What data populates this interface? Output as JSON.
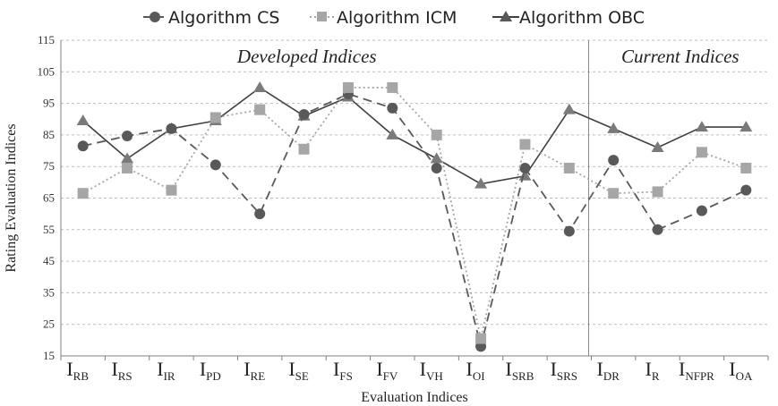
{
  "chart_data": {
    "type": "line",
    "title": "",
    "xlabel": "Evaluation Indices",
    "ylabel": "Rating Evaluation Indices",
    "ylim": [
      15,
      115
    ],
    "yticks": [
      "15",
      "25",
      "35",
      "45",
      "55",
      "65",
      "75",
      "85",
      "95",
      "105",
      "115"
    ],
    "grid": "horizontal dashed",
    "legend_position": "top",
    "categories": [
      {
        "main": "I",
        "sub": "RB"
      },
      {
        "main": "I",
        "sub": "RS"
      },
      {
        "main": "I",
        "sub": "IR"
      },
      {
        "main": "I",
        "sub": "PD"
      },
      {
        "main": "I",
        "sub": "RE"
      },
      {
        "main": "I",
        "sub": "SE"
      },
      {
        "main": "I",
        "sub": "FS"
      },
      {
        "main": "I",
        "sub": "FV"
      },
      {
        "main": "I",
        "sub": "VH"
      },
      {
        "main": "I",
        "sub": "OI"
      },
      {
        "main": "I",
        "sub": "SRB"
      },
      {
        "main": "I",
        "sub": "SRS"
      },
      {
        "main": "I",
        "sub": "DR"
      },
      {
        "main": "I",
        "sub": "R"
      },
      {
        "main": "I",
        "sub": "NFPR"
      },
      {
        "main": "I",
        "sub": "OA"
      }
    ],
    "regions": [
      {
        "label": "Developed Indices"
      },
      {
        "label": "Current Indices"
      }
    ],
    "series": [
      {
        "name": "Algorithm CS",
        "marker": "circle",
        "line": "long-dash",
        "color": "#595959",
        "values": [
          81.5,
          84.7,
          87.0,
          75.5,
          60.0,
          91.5,
          98.0,
          93.5,
          74.5,
          18.0,
          74.5,
          54.5,
          77.0,
          55.0,
          61.0,
          67.5
        ]
      },
      {
        "name": "Algorithm ICM",
        "marker": "square",
        "line": "dotted",
        "color": "#a6a6a6",
        "values": [
          66.5,
          74.5,
          67.5,
          90.5,
          93.0,
          80.5,
          100.0,
          100.0,
          85.0,
          20.5,
          82.0,
          74.5,
          66.5,
          67.0,
          79.5,
          74.5
        ]
      },
      {
        "name": "Algorithm OBC",
        "marker": "triangle",
        "line": "solid",
        "color": "#404040",
        "values": [
          89.5,
          77.5,
          87.0,
          89.5,
          100.0,
          91.0,
          97.0,
          85.0,
          77.5,
          69.5,
          72.0,
          93.0,
          87.0,
          81.0,
          87.5,
          87.5
        ]
      }
    ]
  }
}
